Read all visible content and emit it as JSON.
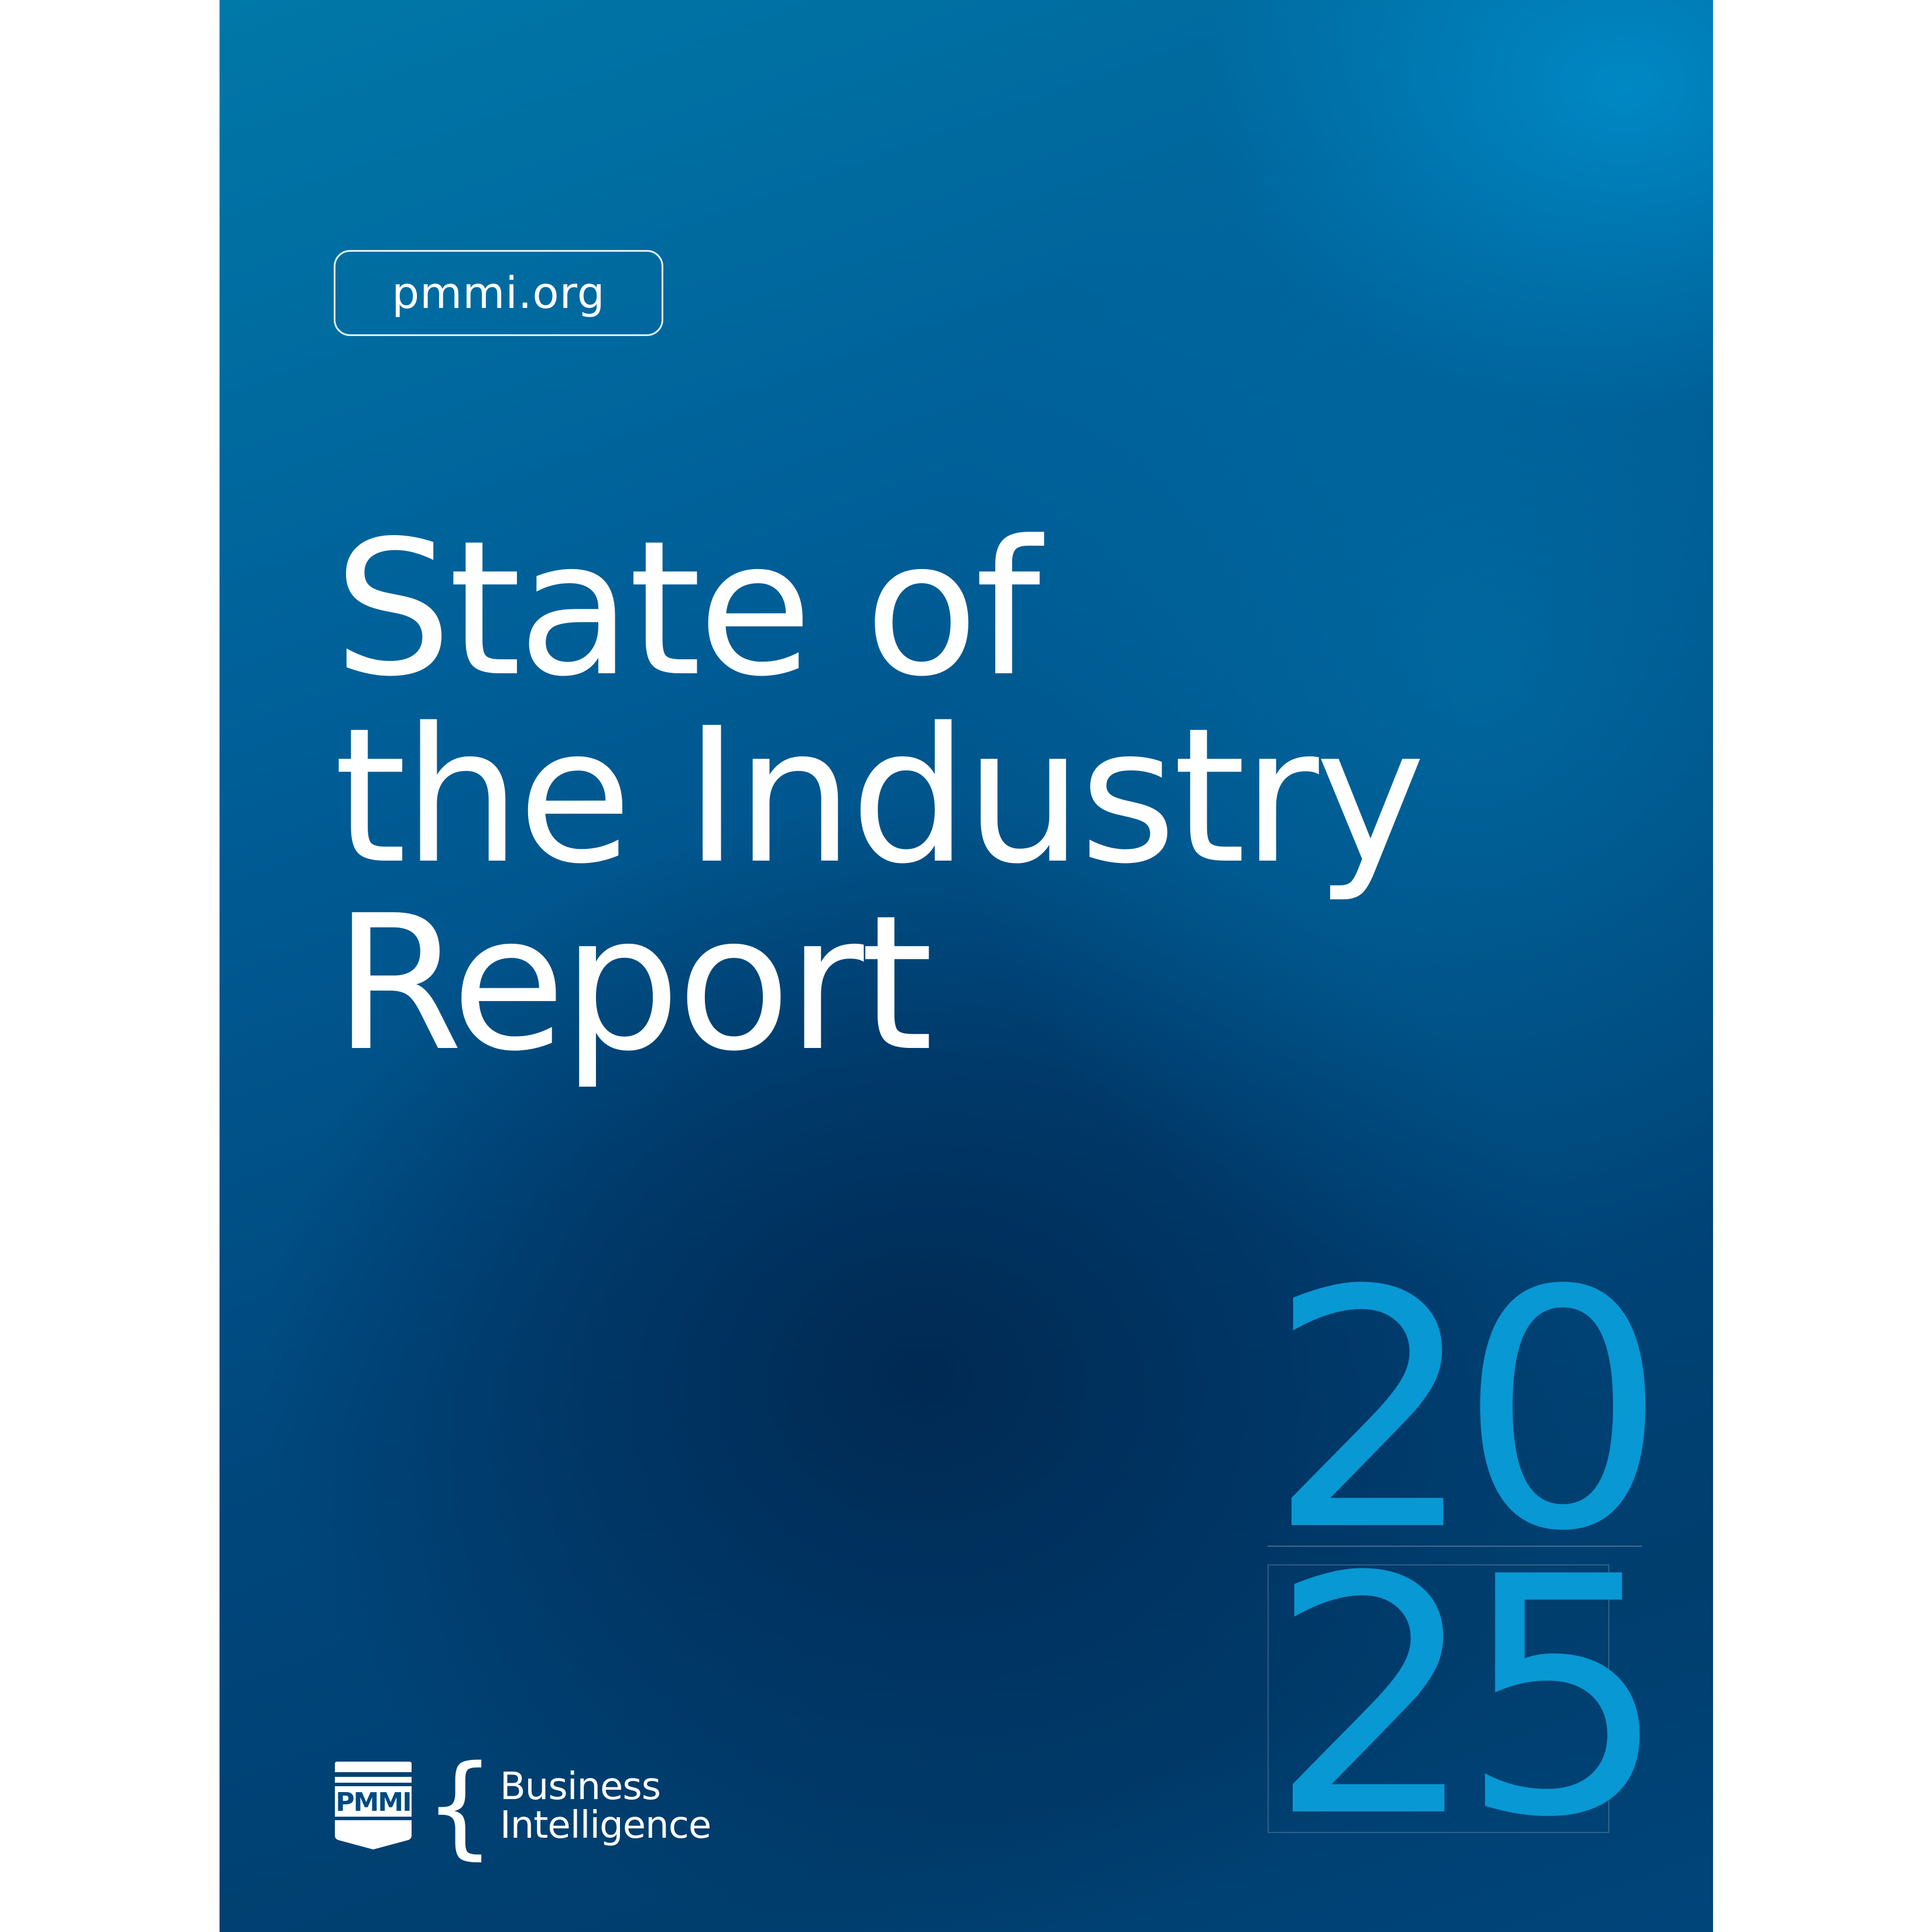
{
  "cover": {
    "url": "pmmi.org",
    "title_lines": [
      "State of",
      "the Industry",
      "Report"
    ],
    "year_top": "20",
    "year_bottom": "25",
    "logo": {
      "mark_text": "PMMI",
      "division_line1": "Business",
      "division_line2": "Intelligence"
    },
    "colors": {
      "accent_year": "#0898d4",
      "background_deep": "#003e6e",
      "background_light": "#0078a8",
      "text": "#ffffff"
    }
  }
}
